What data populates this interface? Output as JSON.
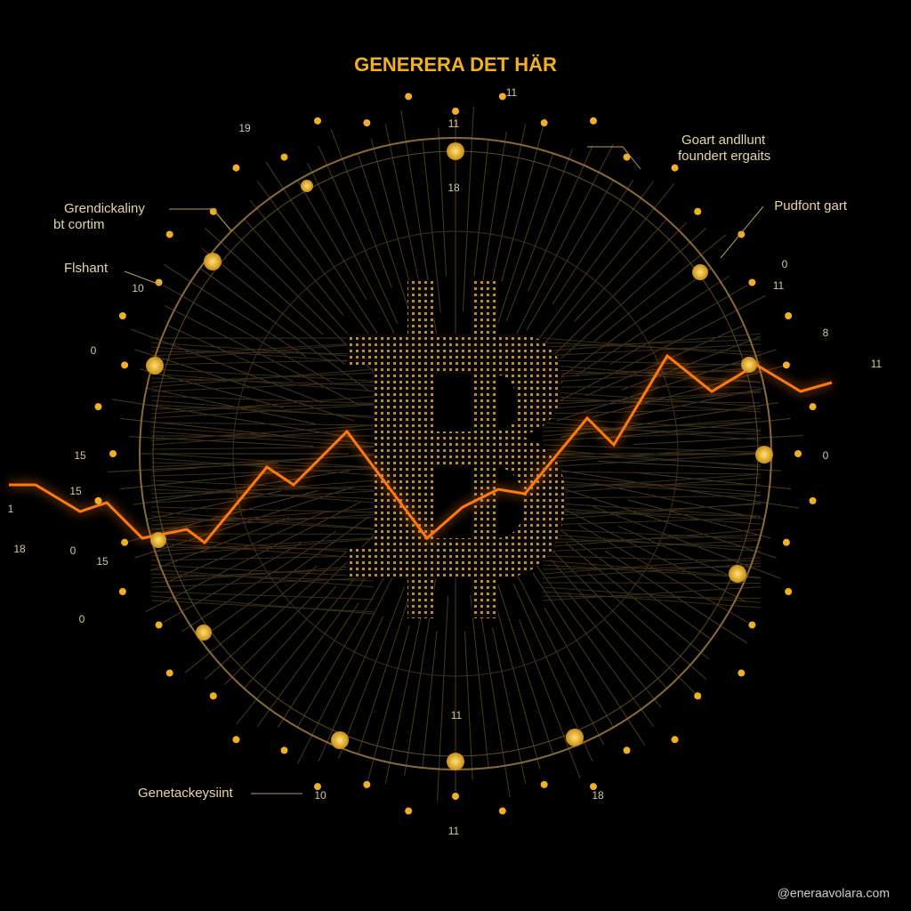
{
  "header": {
    "title": "GENERERA DET HÄR"
  },
  "callouts": [
    {
      "lines": [
        "Goart andllunt",
        "foundert ergaits"
      ]
    },
    {
      "lines": [
        "Grendickaliny",
        "bt cortim"
      ]
    },
    {
      "lines": [
        "Flshant"
      ]
    },
    {
      "lines": [
        "Pudfont gart"
      ]
    },
    {
      "lines": [
        "Genetackeysiint"
      ]
    }
  ],
  "small_labels": [
    "11",
    "11",
    "19",
    "18",
    "10",
    "11",
    "8",
    "11",
    "15",
    "0",
    "15",
    "1",
    "18",
    "0",
    "15",
    "0",
    "11",
    "10",
    "18",
    "11",
    "0",
    "0"
  ],
  "footer": {
    "watermark": "@eneraavolara.com"
  }
}
